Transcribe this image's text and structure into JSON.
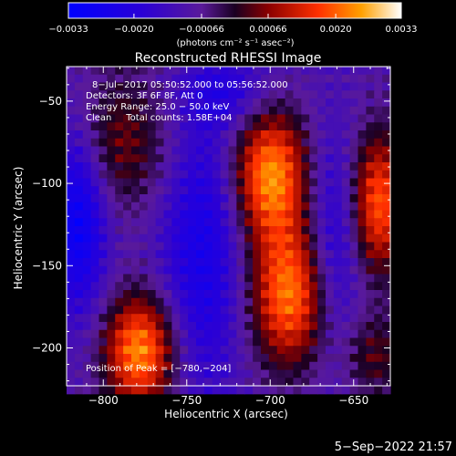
{
  "chart_data": {
    "type": "heatmap",
    "title": "Reconstructed RHESSI Image",
    "xlabel": "Heliocentric X (arcsec)",
    "ylabel": "Heliocentric Y (arcsec)",
    "xlim": [
      -822,
      -628
    ],
    "ylim": [
      -223,
      -29
    ],
    "x_ticks": [
      -800,
      -750,
      -700,
      -650
    ],
    "x_tick_labels": [
      "−800",
      "−750",
      "−700",
      "−650"
    ],
    "y_ticks": [
      -50,
      -100,
      -150,
      -200
    ],
    "y_tick_labels": [
      "−50",
      "−100",
      "−150",
      "−200"
    ],
    "colorbar": {
      "range": [
        -0.0033,
        0.0033
      ],
      "ticks": [
        -0.0033,
        -0.002,
        -0.00066,
        0.00066,
        0.002,
        0.0033
      ],
      "tick_labels": [
        "−0.0033",
        "−0.0020",
        "−0.00066",
        "0.00066",
        "0.0020",
        "0.0033"
      ],
      "unit_label": "(photons cm⁻² s⁻¹ asec⁻²)"
    },
    "annotations": [
      "8−Jul−2017 05:50:52.000 to 05:56:52.000",
      "Detectors: 3F 6F 8F, Att 0",
      "Energy Range: 25.0 − 50.0 keV",
      "Clean     Total counts: 1.58E+04"
    ],
    "peak_label": "Position of Peak = [−780,−204]",
    "peak": [
      -780,
      -204
    ],
    "sources": [
      {
        "x": -700,
        "y": -95,
        "sx": 16,
        "sy": 28,
        "amp": 0.0033
      },
      {
        "x": -688,
        "y": -168,
        "sx": 17,
        "sy": 30,
        "amp": 0.0031
      },
      {
        "x": -778,
        "y": -202,
        "sx": 15,
        "sy": 24,
        "amp": 0.0033
      },
      {
        "x": -635,
        "y": -112,
        "sx": 12,
        "sy": 30,
        "amp": 0.0028
      },
      {
        "x": -790,
        "y": -75,
        "sx": 22,
        "sy": 30,
        "amp": 0.0014
      },
      {
        "x": -638,
        "y": -205,
        "sx": 14,
        "sy": 18,
        "amp": 0.0012
      },
      {
        "x": -740,
        "y": -140,
        "sx": 18,
        "sy": 60,
        "amp": -0.0016
      },
      {
        "x": -815,
        "y": -120,
        "sx": 12,
        "sy": 40,
        "amp": -0.0022
      },
      {
        "x": -662,
        "y": -140,
        "sx": 12,
        "sy": 50,
        "amp": -0.0014
      },
      {
        "x": -725,
        "y": -45,
        "sx": 20,
        "sy": 15,
        "amp": -0.001
      }
    ],
    "grid": false
  },
  "footer": {
    "timestamp": "5−Sep−2022 21:57"
  }
}
